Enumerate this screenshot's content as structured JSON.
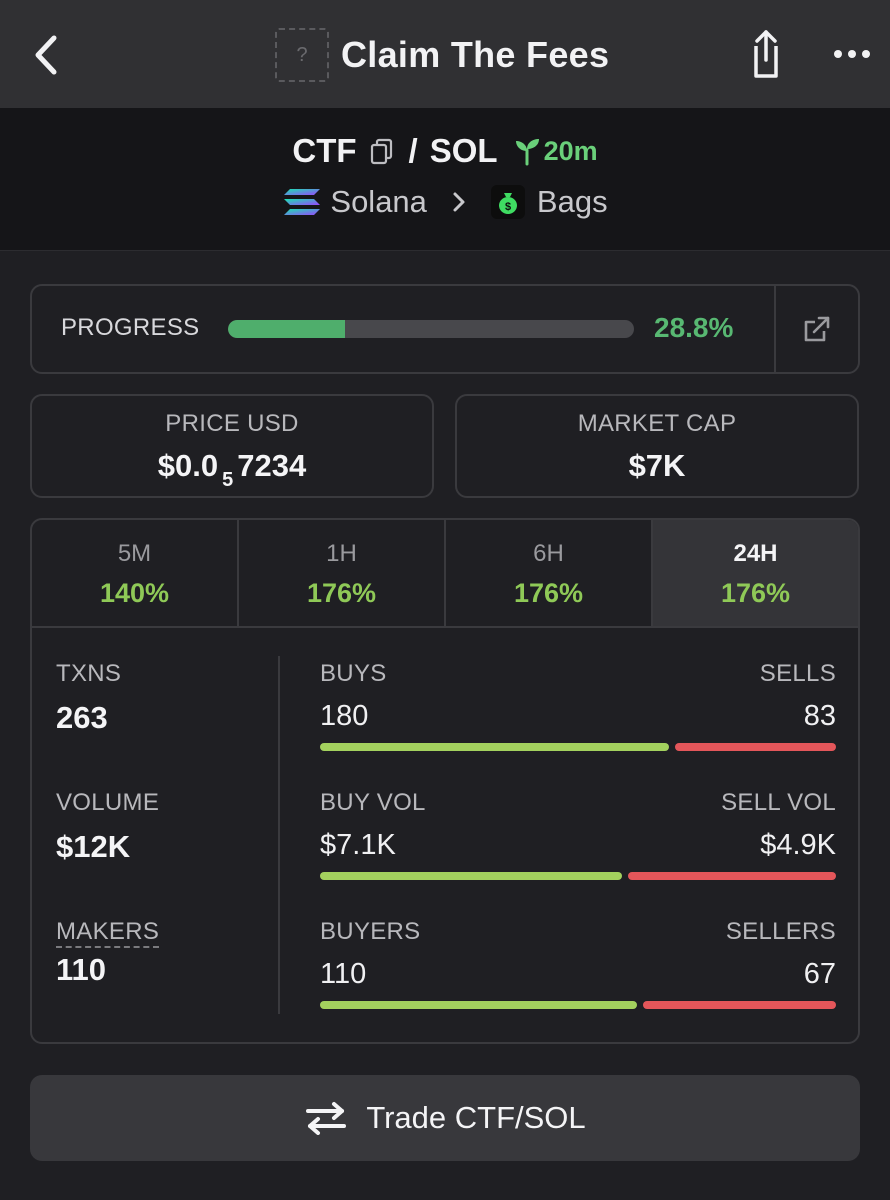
{
  "header": {
    "title": "Claim The Fees",
    "token_icon_placeholder": "?",
    "icons": {
      "back": "chevron-left-icon",
      "share": "share-icon",
      "more": "more-horizontal-icon"
    }
  },
  "pair": {
    "base": "CTF",
    "separator": "/",
    "quote": "SOL",
    "age": "20m",
    "chain": "Solana",
    "dex": "Bags"
  },
  "progress": {
    "label": "PROGRESS",
    "value_text": "28.8%",
    "fraction": 0.288
  },
  "price": {
    "label": "PRICE USD",
    "prefix": "$0.0",
    "zeros_subscript": "5",
    "digits": "7234"
  },
  "market_cap": {
    "label": "MARKET CAP",
    "value": "$7K"
  },
  "timeframes": [
    {
      "label": "5M",
      "change": "140%",
      "active": false
    },
    {
      "label": "1H",
      "change": "176%",
      "active": false
    },
    {
      "label": "6H",
      "change": "176%",
      "active": false
    },
    {
      "label": "24H",
      "change": "176%",
      "active": true
    }
  ],
  "stats": {
    "txns": {
      "label": "TXNS",
      "value": "263"
    },
    "volume": {
      "label": "VOLUME",
      "value": "$12K"
    },
    "makers": {
      "label": "MAKERS",
      "value": "110"
    }
  },
  "splits": {
    "txns": {
      "left_label": "BUYS",
      "right_label": "SELLS",
      "left_value": "180",
      "right_value": "83",
      "buy_fraction": 0.684
    },
    "volume": {
      "left_label": "BUY VOL",
      "right_label": "SELL VOL",
      "left_value": "$7.1K",
      "right_value": "$4.9K",
      "buy_fraction": 0.592
    },
    "makers": {
      "left_label": "BUYERS",
      "right_label": "SELLERS",
      "left_value": "110",
      "right_value": "67",
      "buy_fraction": 0.622
    }
  },
  "trade_button": {
    "label": "Trade CTF/SOL"
  },
  "colors": {
    "accent_green": "#58b872",
    "change_green": "#8fc957",
    "buy_bar": "#a3d15e",
    "sell_bar": "#e4565a",
    "background": "#1f1f23"
  }
}
